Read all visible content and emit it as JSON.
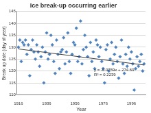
{
  "chart_data": {
    "type": "scatter",
    "title": "Ice break-up occurring earlier",
    "x_label": "Year",
    "y_label": "Break up date (day of year)",
    "annotations": [
      "y = -0.0759x + 274.69",
      "R² = 0.2239"
    ],
    "xlim": [
      1915,
      2006
    ],
    "xticks": [
      1916,
      1936,
      1956,
      1976,
      1996
    ],
    "ylim": [
      110,
      145
    ],
    "yticks": [
      110,
      115,
      120,
      125,
      130,
      135,
      140,
      145
    ],
    "grid": true,
    "series": [
      {
        "type": "scatter",
        "marker": "diamond",
        "color": "#4f81bd",
        "x": [
          1916,
          1917,
          1918,
          1919,
          1920,
          1921,
          1922,
          1923,
          1924,
          1925,
          1926,
          1927,
          1928,
          1929,
          1930,
          1931,
          1932,
          1933,
          1934,
          1935,
          1936,
          1937,
          1938,
          1939,
          1940,
          1941,
          1942,
          1943,
          1944,
          1945,
          1946,
          1947,
          1948,
          1949,
          1950,
          1951,
          1952,
          1953,
          1954,
          1955,
          1956,
          1957,
          1958,
          1959,
          1960,
          1961,
          1962,
          1963,
          1964,
          1965,
          1966,
          1967,
          1968,
          1969,
          1970,
          1971,
          1972,
          1973,
          1974,
          1975,
          1976,
          1977,
          1978,
          1979,
          1980,
          1981,
          1982,
          1983,
          1984,
          1985,
          1986,
          1987,
          1988,
          1989,
          1990,
          1991,
          1992,
          1993,
          1994,
          1995,
          1996,
          1997,
          1998,
          1999,
          2000,
          2001,
          2002,
          2003,
          2004,
          2005
        ],
        "values": [
          130,
          133,
          124,
          132,
          131,
          133,
          127,
          131,
          118,
          129,
          133,
          128,
          125,
          131,
          128,
          122,
          126,
          130,
          115,
          128,
          136,
          125,
          127,
          135,
          131,
          124,
          119,
          133,
          127,
          121,
          128,
          129,
          134,
          123,
          128,
          136,
          124,
          119,
          127,
          132,
          131,
          138,
          124,
          126,
          141,
          123,
          129,
          135,
          130,
          126,
          118,
          132,
          124,
          128,
          121,
          133,
          131,
          126,
          130,
          124,
          121,
          115,
          129,
          131,
          120,
          125,
          132,
          123,
          127,
          130,
          124,
          117,
          126,
          133,
          123,
          119,
          127,
          122,
          130,
          125,
          128,
          123,
          112,
          121,
          126,
          122,
          124,
          127,
          120,
          123
        ]
      },
      {
        "type": "line",
        "line_style": "solid",
        "color": "#404040",
        "x": [
          1916,
          2005
        ],
        "values": [
          129.26,
          122.51
        ]
      }
    ]
  }
}
